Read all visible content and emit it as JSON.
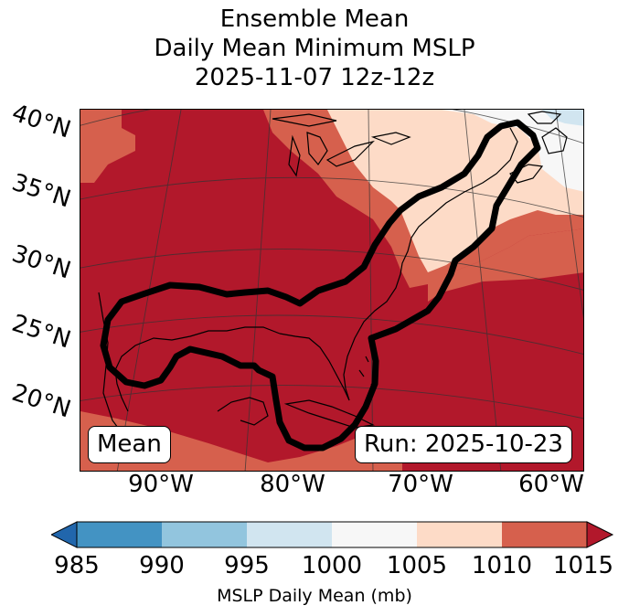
{
  "title": {
    "line1": "Ensemble Mean",
    "line2": "Daily Mean Minimum MSLP",
    "line3": "2025-11-07 12z-12z"
  },
  "map": {
    "lat_labels": [
      "40°N",
      "35°N",
      "30°N",
      "25°N",
      "20°N"
    ],
    "lon_labels": [
      "90°W",
      "80°W",
      "70°W",
      "60°W"
    ],
    "left_box": "Mean",
    "right_box": "Run: 2025-10-23",
    "field_colors": {
      "1010-1015": "#d6604d",
      "above_1015": "#b2182b",
      "1005-1010": "#fddbc7",
      "1000-1005": "#f7f7f7",
      "995-1000": "#d1e5f0"
    },
    "contour_color": "#000000"
  },
  "colorbar": {
    "label": "MSLP Daily Mean (mb)",
    "ticks": [
      "985",
      "990",
      "995",
      "1000",
      "1005",
      "1010",
      "1015"
    ],
    "bins": [
      {
        "range": "<985",
        "color": "#2166ac"
      },
      {
        "range": "985-990",
        "color": "#4393c3"
      },
      {
        "range": "990-995",
        "color": "#92c5de"
      },
      {
        "range": "995-1000",
        "color": "#d1e5f0"
      },
      {
        "range": "1000-1005",
        "color": "#f7f7f7"
      },
      {
        "range": "1005-1010",
        "color": "#fddbc7"
      },
      {
        "range": "1010-1015",
        "color": "#d6604d"
      },
      {
        "range": ">1015",
        "color": "#b2182b"
      }
    ]
  }
}
